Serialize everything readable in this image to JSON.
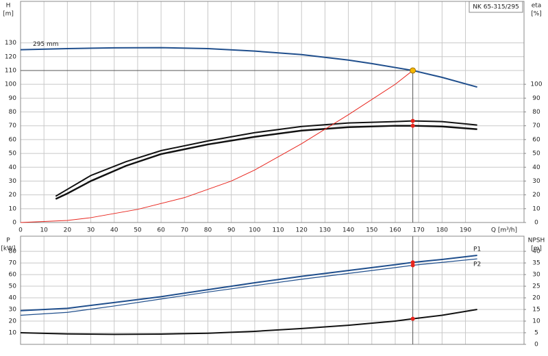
{
  "chart_data": [
    {
      "type": "line",
      "title": "NK 65-315/295",
      "y_label": [
        "H",
        "[m]"
      ],
      "y2_label": [
        "eta",
        "[%]"
      ],
      "x_label": "Q [m³/h]",
      "xlim": [
        0,
        215
      ],
      "xticks": [
        0,
        10,
        20,
        30,
        40,
        50,
        60,
        70,
        80,
        90,
        100,
        110,
        120,
        130,
        140,
        150,
        160,
        170,
        180,
        190
      ],
      "ylim": [
        0,
        160
      ],
      "yticks": [
        0,
        10,
        20,
        30,
        40,
        50,
        60,
        70,
        80,
        90,
        100,
        110,
        120,
        130
      ],
      "y2lim": [
        0,
        160
      ],
      "y2ticks": [
        0,
        10,
        20,
        30,
        40,
        50,
        60,
        70,
        80,
        90,
        100
      ],
      "grid": true,
      "duty": {
        "x": 167.5,
        "y": 110,
        "color": "#f5b800"
      },
      "series": [
        {
          "name": "295 mm",
          "color": "#1f4e8c",
          "width": 2,
          "x": [
            0,
            20,
            40,
            60,
            80,
            100,
            120,
            140,
            150,
            167.5,
            180,
            195
          ],
          "values": [
            125,
            125.8,
            126.4,
            126.5,
            125.8,
            124,
            121.5,
            117.5,
            115,
            110,
            105,
            98
          ]
        },
        {
          "color": "#111111",
          "width": 2,
          "axis": "y2",
          "marker_color": "#e8241c",
          "x": [
            15,
            20,
            30,
            45,
            60,
            80,
            100,
            120,
            140,
            160,
            167.5,
            180,
            195
          ],
          "values": [
            19,
            24,
            34,
            44,
            52,
            59,
            65,
            69.5,
            72,
            73,
            73.5,
            73,
            70.5
          ]
        },
        {
          "color": "#111111",
          "width": 2.5,
          "axis": "y2",
          "marker_color": "#e8241c",
          "x": [
            15,
            20,
            30,
            45,
            60,
            80,
            100,
            120,
            140,
            160,
            167.5,
            180,
            195
          ],
          "values": [
            17,
            21,
            30,
            41,
            49.5,
            56.5,
            62,
            66.5,
            69,
            70,
            70,
            69.5,
            67.5
          ]
        },
        {
          "color": "#e8241c",
          "width": 1,
          "x": [
            0,
            20,
            30,
            50,
            70,
            90,
            100,
            120,
            140,
            160,
            167.5
          ],
          "values": [
            0,
            1.5,
            3.5,
            9.5,
            18,
            30,
            38,
            57,
            78,
            100,
            110
          ]
        }
      ]
    },
    {
      "type": "line",
      "y_label": [
        "P",
        "[kW]"
      ],
      "y2_label": [
        "NPSH",
        "[m]"
      ],
      "xlim": [
        0,
        215
      ],
      "xticks": [
        0,
        10,
        20,
        30,
        40,
        50,
        60,
        70,
        80,
        90,
        100,
        110,
        120,
        130,
        140,
        150,
        160,
        170,
        180,
        190
      ],
      "ylim": [
        0,
        93
      ],
      "yticks": [
        10,
        20,
        30,
        40,
        50,
        60,
        70,
        80
      ],
      "y2lim": [
        0,
        46.5
      ],
      "y2ticks": [
        0,
        5,
        10,
        15,
        20,
        25,
        30,
        35,
        40
      ],
      "grid": true,
      "duty": {
        "x": 167.5
      },
      "series": [
        {
          "name": "P1",
          "color": "#1f4e8c",
          "width": 2,
          "marker_color": "#e8241c",
          "x": [
            0,
            20,
            40,
            60,
            80,
            100,
            120,
            140,
            160,
            167.5,
            180,
            195
          ],
          "values": [
            29,
            31,
            36,
            41,
            47,
            53,
            58.5,
            63.5,
            68.5,
            70.5,
            73,
            76.5
          ]
        },
        {
          "name": "P2",
          "color": "#1f4e8c",
          "width": 1.2,
          "marker_color": "#e8241c",
          "x": [
            0,
            20,
            40,
            60,
            80,
            100,
            120,
            140,
            160,
            167.5,
            180,
            195
          ],
          "values": [
            25,
            27.5,
            33,
            39,
            45,
            50.5,
            56,
            61,
            66,
            68,
            70.5,
            73.5
          ]
        },
        {
          "color": "#111111",
          "width": 2,
          "axis": "y2",
          "marker_color": "#e8241c",
          "x": [
            0,
            20,
            40,
            60,
            80,
            100,
            120,
            140,
            160,
            167.5,
            180,
            195
          ],
          "values": [
            5,
            4.5,
            4.3,
            4.4,
            4.8,
            5.6,
            6.8,
            8.2,
            10,
            11,
            12.5,
            15
          ]
        }
      ]
    }
  ]
}
